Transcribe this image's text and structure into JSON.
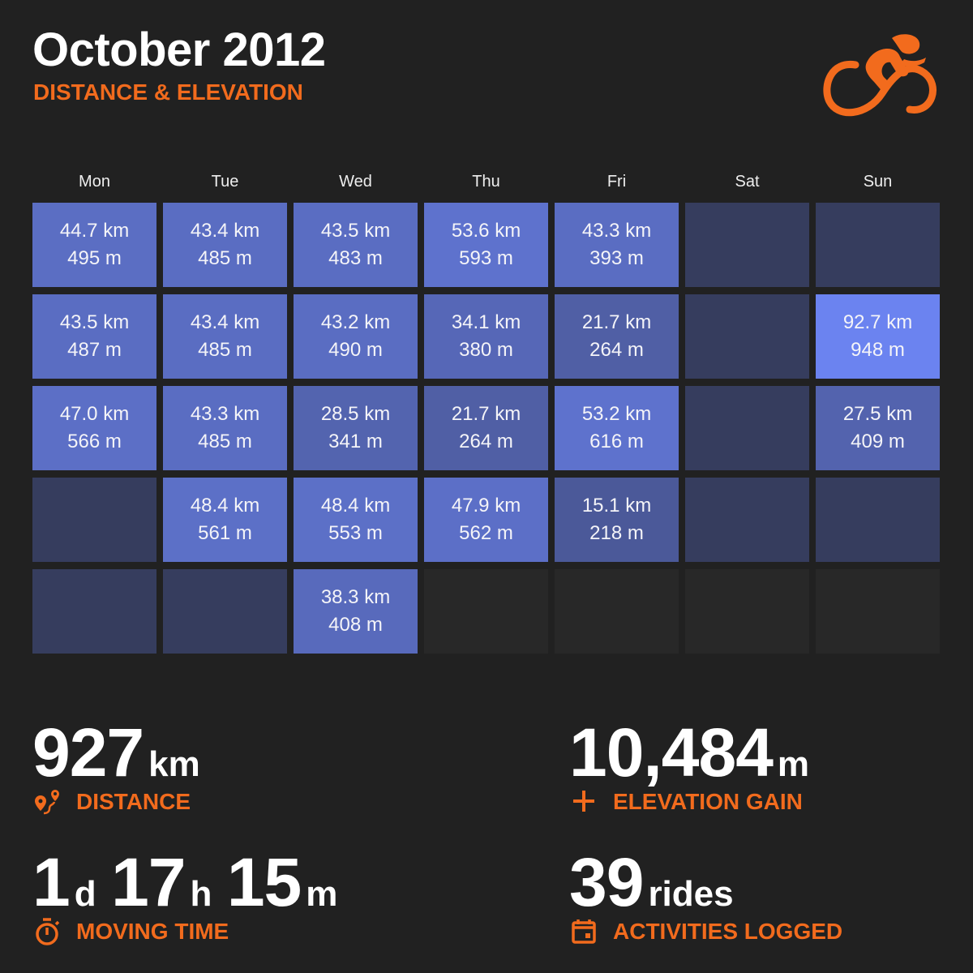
{
  "header": {
    "title": "October 2012",
    "subtitle": "DISTANCE & ELEVATION",
    "logo_icon": "cyclist-icon"
  },
  "colors": {
    "accent": "#f26b1d",
    "background": "#212121",
    "empty_day": "#363d5e",
    "out_of_month": "#282828",
    "max_day": "#6b83f0"
  },
  "calendar": {
    "weekdays": [
      "Mon",
      "Tue",
      "Wed",
      "Thu",
      "Fri",
      "Sat",
      "Sun"
    ],
    "weeks": [
      [
        {
          "km": "44.7 km",
          "m": "495 m",
          "v": 44.7
        },
        {
          "km": "43.4 km",
          "m": "485 m",
          "v": 43.4
        },
        {
          "km": "43.5 km",
          "m": "483 m",
          "v": 43.5
        },
        {
          "km": "53.6 km",
          "m": "593 m",
          "v": 53.6
        },
        {
          "km": "43.3 km",
          "m": "393 m",
          "v": 43.3
        },
        {
          "v": 0
        },
        {
          "v": 0
        }
      ],
      [
        {
          "km": "43.5 km",
          "m": "487 m",
          "v": 43.5
        },
        {
          "km": "43.4 km",
          "m": "485 m",
          "v": 43.4
        },
        {
          "km": "43.2 km",
          "m": "490 m",
          "v": 43.2
        },
        {
          "km": "34.1 km",
          "m": "380 m",
          "v": 34.1
        },
        {
          "km": "21.7 km",
          "m": "264 m",
          "v": 21.7
        },
        {
          "v": 0
        },
        {
          "km": "92.7 km",
          "m": "948 m",
          "v": 92.7
        }
      ],
      [
        {
          "km": "47.0 km",
          "m": "566 m",
          "v": 47.0
        },
        {
          "km": "43.3 km",
          "m": "485 m",
          "v": 43.3
        },
        {
          "km": "28.5 km",
          "m": "341 m",
          "v": 28.5
        },
        {
          "km": "21.7 km",
          "m": "264 m",
          "v": 21.7
        },
        {
          "km": "53.2 km",
          "m": "616 m",
          "v": 53.2
        },
        {
          "v": 0
        },
        {
          "km": "27.5 km",
          "m": "409 m",
          "v": 27.5
        }
      ],
      [
        {
          "v": 0
        },
        {
          "km": "48.4 km",
          "m": "561 m",
          "v": 48.4
        },
        {
          "km": "48.4 km",
          "m": "553 m",
          "v": 48.4
        },
        {
          "km": "47.9 km",
          "m": "562 m",
          "v": 47.9
        },
        {
          "km": "15.1 km",
          "m": "218 m",
          "v": 15.1
        },
        {
          "v": 0
        },
        {
          "v": 0
        }
      ],
      [
        {
          "v": 0
        },
        {
          "v": 0
        },
        {
          "km": "38.3 km",
          "m": "408 m",
          "v": 38.3
        },
        {
          "out": true
        },
        {
          "out": true
        },
        {
          "out": true
        },
        {
          "out": true
        }
      ]
    ]
  },
  "stats": {
    "distance": {
      "value": "927",
      "unit": "km",
      "label": "DISTANCE",
      "icon": "route-icon"
    },
    "elevation": {
      "value": "10,484",
      "unit": "m",
      "label": "ELEVATION GAIN",
      "icon": "plus-icon"
    },
    "moving_time": {
      "days": "1",
      "d": "d",
      "hours": "17",
      "h": "h",
      "minutes": "15",
      "m": "m",
      "label": "MOVING TIME",
      "icon": "stopwatch-icon"
    },
    "rides": {
      "value": "39",
      "unit": "rides",
      "label": "ACTIVITIES LOGGED",
      "icon": "calendar-icon"
    }
  }
}
